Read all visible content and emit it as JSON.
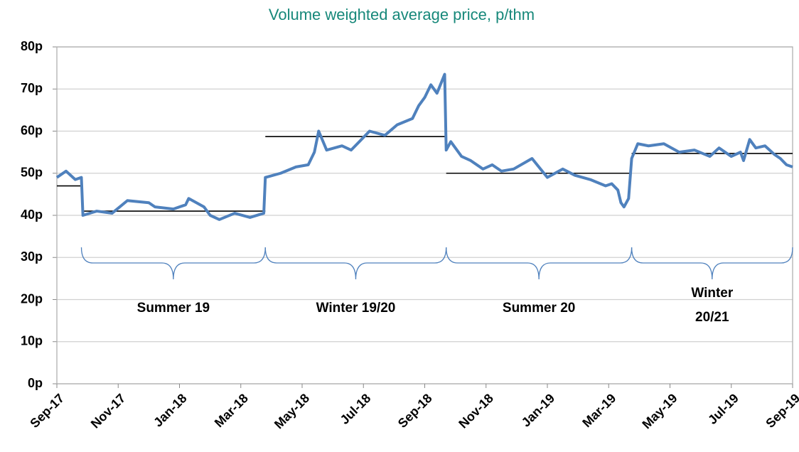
{
  "chart_data": {
    "type": "line",
    "title": "Volume weighted average price, p/thm",
    "xlim": [
      0,
      24
    ],
    "xticks": [
      {
        "value": 0,
        "label": "Sep-17"
      },
      {
        "value": 2,
        "label": "Nov-17"
      },
      {
        "value": 4,
        "label": "Jan-18"
      },
      {
        "value": 6,
        "label": "Mar-18"
      },
      {
        "value": 8,
        "label": "May-18"
      },
      {
        "value": 10,
        "label": "Jul-18"
      },
      {
        "value": 12,
        "label": "Sep-18"
      },
      {
        "value": 14,
        "label": "Nov-18"
      },
      {
        "value": 16,
        "label": "Jan-19"
      },
      {
        "value": 18,
        "label": "Mar-19"
      },
      {
        "value": 20,
        "label": "May-19"
      },
      {
        "value": 22,
        "label": "Jul-19"
      },
      {
        "value": 24,
        "label": "Sep-19"
      }
    ],
    "ylim": [
      0,
      80
    ],
    "yticks": [
      {
        "value": 0,
        "label": "0p"
      },
      {
        "value": 10,
        "label": "10p"
      },
      {
        "value": 20,
        "label": "20p"
      },
      {
        "value": 30,
        "label": "30p"
      },
      {
        "value": 40,
        "label": "40p"
      },
      {
        "value": 50,
        "label": "50p"
      },
      {
        "value": 60,
        "label": "60p"
      },
      {
        "value": 70,
        "label": "70p"
      },
      {
        "value": 80,
        "label": "80p"
      }
    ],
    "grid": true,
    "series": [
      {
        "color": "#4f81bd",
        "x": [
          0,
          0.3,
          0.6,
          0.8,
          0.85,
          1.3,
          1.8,
          2.3,
          3.0,
          3.2,
          3.8,
          4.2,
          4.3,
          4.8,
          5.0,
          5.3,
          5.8,
          6.3,
          6.75,
          6.8,
          7.3,
          7.8,
          8.2,
          8.4,
          8.54,
          8.8,
          9.3,
          9.6,
          10.2,
          10.7,
          11.1,
          11.6,
          11.8,
          12.0,
          12.2,
          12.4,
          12.65,
          12.7,
          12.85,
          13.2,
          13.5,
          13.9,
          14.2,
          14.5,
          14.9,
          15.5,
          16.0,
          16.5,
          16.9,
          17.4,
          17.9,
          18.1,
          18.3,
          18.4,
          18.5,
          18.65,
          18.75,
          18.95,
          19.3,
          19.8,
          20.3,
          20.8,
          21.3,
          21.6,
          22.0,
          22.3,
          22.4,
          22.6,
          22.8,
          23.1,
          23.4,
          23.6,
          23.8,
          24
        ],
        "values": [
          49,
          50.5,
          48.5,
          49,
          40,
          41,
          40.5,
          43.5,
          43,
          42,
          41.5,
          42.5,
          44,
          42,
          40,
          39,
          40.5,
          39.5,
          40.5,
          49,
          50,
          51.5,
          52,
          55,
          60,
          55.5,
          56.5,
          55.5,
          60,
          59,
          61.5,
          63,
          66,
          68,
          71,
          69,
          73.5,
          55.5,
          57.5,
          54,
          53,
          51,
          52,
          50.5,
          51,
          53.5,
          49,
          51,
          49.5,
          48.5,
          47,
          47.5,
          46,
          43,
          42,
          44,
          53.5,
          57,
          56.5,
          57,
          55,
          55.5,
          54,
          56,
          54,
          55,
          53,
          58,
          56,
          56.5,
          54.5,
          53.5,
          52,
          51.5
        ]
      }
    ],
    "segments": [
      {
        "start": 0,
        "end": 0.8,
        "value": 47
      },
      {
        "start": 0.8,
        "end": 6.8,
        "value": 41,
        "label": [
          "Summer 19"
        ]
      },
      {
        "start": 6.8,
        "end": 12.7,
        "value": 58.7,
        "label": [
          "Winter 19/20"
        ]
      },
      {
        "start": 12.7,
        "end": 18.75,
        "value": 50,
        "label": [
          "Summer 20"
        ]
      },
      {
        "start": 18.75,
        "end": 24,
        "value": 54.7,
        "label": [
          "Winter",
          "20/21"
        ]
      }
    ],
    "segment_color": "#000000",
    "brace_color": "#4f81bd"
  }
}
